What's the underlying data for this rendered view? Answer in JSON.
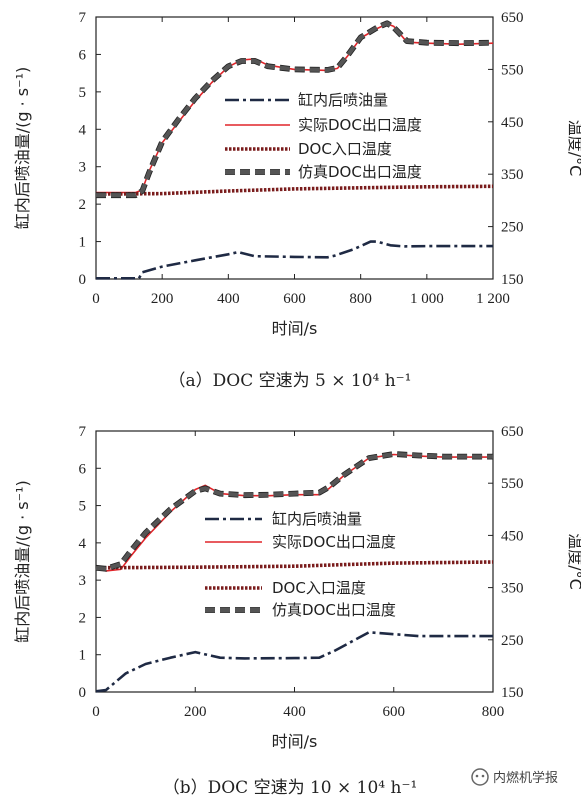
{
  "chart_data": [
    {
      "type": "line",
      "caption": "（a）DOC 空速为 5 × 10⁴ h⁻¹",
      "xlabel": "时间/s",
      "ylabel_left": "缸内后喷油量/(g · s⁻¹)",
      "ylabel_right": "温度/°C",
      "xlim": [
        0,
        1200
      ],
      "ylim_left": [
        0,
        7
      ],
      "ylim_right": [
        150,
        650
      ],
      "x_ticks": [
        0,
        200,
        400,
        600,
        800,
        1000,
        1200
      ],
      "x_tick_labels": [
        "0",
        "200",
        "400",
        "600",
        "800",
        "1 000",
        "1 200"
      ],
      "y_left_ticks": [
        0,
        1,
        2,
        3,
        4,
        5,
        6,
        7
      ],
      "y_right_ticks": [
        150,
        250,
        350,
        450,
        550,
        650
      ],
      "legend": [
        "缸内后喷油量",
        "实际DOC出口温度",
        "DOC入口温度",
        "仿真DOC出口温度"
      ],
      "series": [
        {
          "name": "缸内后喷油量",
          "axis": "left",
          "color": "#1f2a44",
          "x": [
            0,
            130,
            140,
            200,
            300,
            400,
            430,
            480,
            600,
            700,
            720,
            780,
            830,
            850,
            890,
            930,
            1000,
            1100,
            1200
          ],
          "y": [
            0.02,
            0.02,
            0.18,
            0.33,
            0.5,
            0.66,
            0.72,
            0.61,
            0.59,
            0.58,
            0.62,
            0.8,
            1.0,
            1.0,
            0.9,
            0.87,
            0.88,
            0.88,
            0.88
          ]
        },
        {
          "name": "实际DOC出口温度",
          "axis": "right",
          "color": "#e0252a",
          "x": [
            0,
            120,
            140,
            160,
            200,
            250,
            300,
            350,
            400,
            440,
            480,
            520,
            600,
            700,
            730,
            760,
            800,
            850,
            880,
            900,
            940,
            1000,
            1100,
            1200
          ],
          "y": [
            315,
            315,
            320,
            355,
            410,
            450,
            490,
            525,
            555,
            568,
            570,
            558,
            550,
            548,
            552,
            575,
            610,
            628,
            637,
            632,
            602,
            600,
            598,
            600
          ]
        },
        {
          "name": "DOC入口温度",
          "axis": "right",
          "color": "#7a1c1c",
          "x": [
            0,
            200,
            400,
            600,
            800,
            1000,
            1200
          ],
          "y": [
            312,
            313,
            318,
            322,
            324,
            326,
            327
          ]
        },
        {
          "name": "仿真DOC出口温度",
          "axis": "right",
          "color": "#666666",
          "x": [
            0,
            120,
            140,
            160,
            200,
            250,
            300,
            350,
            400,
            440,
            480,
            520,
            600,
            700,
            730,
            760,
            800,
            850,
            880,
            900,
            940,
            1000,
            1100,
            1200
          ],
          "y": [
            310,
            310,
            318,
            352,
            412,
            455,
            495,
            528,
            556,
            566,
            566,
            556,
            550,
            549,
            553,
            576,
            611,
            630,
            638,
            630,
            604,
            601,
            600,
            601
          ]
        }
      ]
    },
    {
      "type": "line",
      "caption": "（b）DOC 空速为 10 × 10⁴ h⁻¹",
      "xlabel": "时间/s",
      "ylabel_left": "缸内后喷油量/(g · s⁻¹)",
      "ylabel_right": "温度/°C",
      "xlim": [
        0,
        800
      ],
      "ylim_left": [
        0,
        7
      ],
      "ylim_right": [
        150,
        650
      ],
      "x_ticks": [
        0,
        200,
        400,
        600,
        800
      ],
      "x_tick_labels": [
        "0",
        "200",
        "400",
        "600",
        "800"
      ],
      "y_left_ticks": [
        0,
        1,
        2,
        3,
        4,
        5,
        6,
        7
      ],
      "y_right_ticks": [
        150,
        250,
        350,
        450,
        550,
        650
      ],
      "legend": [
        "缸内后喷油量",
        "实际DOC出口温度",
        "DOC入口温度",
        "仿真DOC出口温度"
      ],
      "series": [
        {
          "name": "缸内后喷油量",
          "axis": "left",
          "color": "#1f2a44",
          "x": [
            0,
            20,
            60,
            100,
            150,
            200,
            250,
            300,
            400,
            450,
            480,
            550,
            600,
            650,
            800
          ],
          "y": [
            0.02,
            0.05,
            0.5,
            0.75,
            0.92,
            1.07,
            0.92,
            0.9,
            0.91,
            0.92,
            1.1,
            1.6,
            1.55,
            1.5,
            1.5
          ]
        },
        {
          "name": "实际DOC出口温度",
          "axis": "right",
          "color": "#e0252a",
          "x": [
            0,
            20,
            50,
            70,
            100,
            150,
            200,
            220,
            250,
            300,
            350,
            400,
            450,
            470,
            500,
            550,
            600,
            650,
            700,
            800
          ],
          "y": [
            386,
            382,
            385,
            410,
            445,
            495,
            538,
            546,
            530,
            526,
            526,
            528,
            528,
            540,
            565,
            598,
            605,
            602,
            600,
            600
          ]
        },
        {
          "name": "DOC入口温度",
          "axis": "right",
          "color": "#7a1c1c",
          "x": [
            0,
            200,
            400,
            500,
            600,
            800
          ],
          "y": [
            388,
            389,
            391,
            394,
            397,
            399
          ]
        },
        {
          "name": "仿真DOC出口温度",
          "axis": "right",
          "color": "#666666",
          "x": [
            0,
            20,
            50,
            70,
            100,
            150,
            200,
            220,
            250,
            300,
            350,
            400,
            450,
            470,
            500,
            550,
            600,
            650,
            700,
            800
          ],
          "y": [
            388,
            386,
            395,
            420,
            455,
            500,
            535,
            540,
            530,
            527,
            528,
            530,
            532,
            543,
            566,
            598,
            606,
            603,
            601,
            601
          ]
        }
      ]
    }
  ],
  "watermark": "内燃机学报"
}
